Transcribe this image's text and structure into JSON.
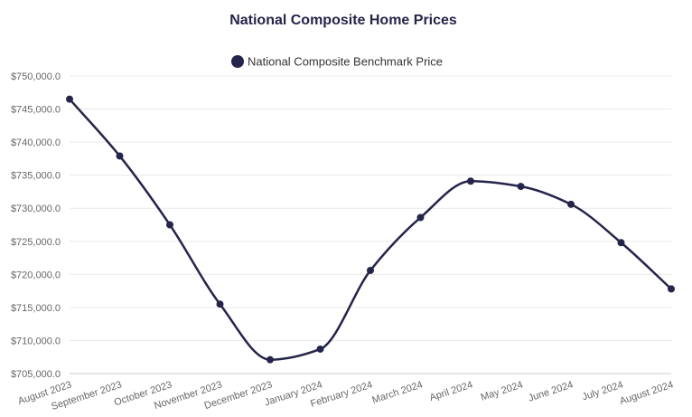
{
  "chart_data": {
    "type": "line",
    "title": "National Composite Home Prices",
    "xlabel": "",
    "ylabel": "",
    "categories": [
      "August 2023",
      "September 2023",
      "October 2023",
      "November 2023",
      "December 2023",
      "January 2024",
      "February 2024",
      "March 2024",
      "April 2024",
      "May 2024",
      "June 2024",
      "July 2024",
      "August 2024"
    ],
    "series": [
      {
        "name": "National Composite Benchmark Price",
        "values": [
          746500,
          737900,
          727500,
          715500,
          707100,
          708700,
          720600,
          728600,
          734100,
          733300,
          730600,
          724800,
          717800
        ]
      }
    ],
    "ylim": [
      705000,
      750000
    ],
    "yticks": [
      705000,
      710000,
      715000,
      720000,
      725000,
      730000,
      735000,
      740000,
      745000,
      750000
    ],
    "ytick_labels": [
      "$705,000.0",
      "$710,000.0",
      "$715,000.0",
      "$720,000.0",
      "$725,000.0",
      "$730,000.0",
      "$735,000.0",
      "$740,000.0",
      "$745,000.0",
      "$750,000.0"
    ],
    "grid": true,
    "legend_position": "top-center"
  },
  "colors": {
    "series": "#25244a",
    "title": "#25244a",
    "grid": "#e9e9e9",
    "axis_text": "#666666",
    "legend_text": "#333333",
    "baseline": "#cccccc"
  }
}
